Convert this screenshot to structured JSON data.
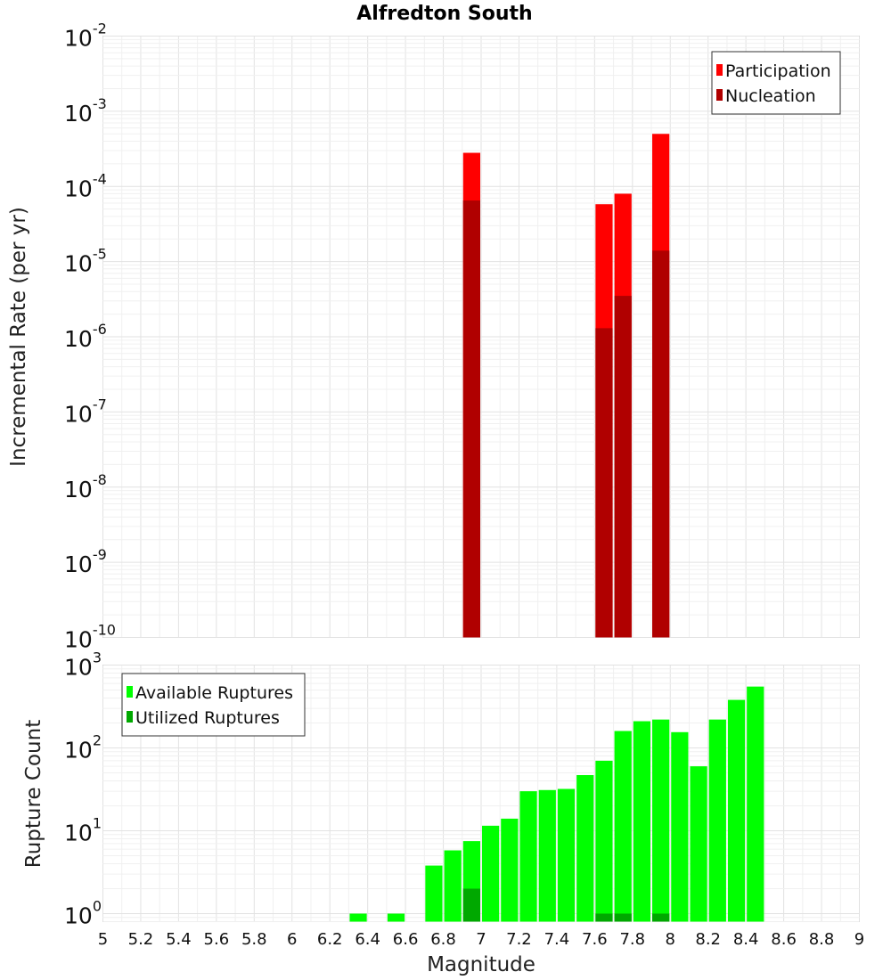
{
  "chart_data": [
    {
      "type": "bar",
      "title": "Alfredton South",
      "xlabel": "",
      "ylabel": "Incremental Rate (per yr)",
      "xlim": [
        5,
        9
      ],
      "ylim": [
        1e-10,
        0.01
      ],
      "yscale": "log",
      "y_ticks": [
        {
          "base": "10",
          "exp": "-10"
        },
        {
          "base": "10",
          "exp": "-9"
        },
        {
          "base": "10",
          "exp": "-8"
        },
        {
          "base": "10",
          "exp": "-7"
        },
        {
          "base": "10",
          "exp": "-6"
        },
        {
          "base": "10",
          "exp": "-5"
        },
        {
          "base": "10",
          "exp": "-4"
        },
        {
          "base": "10",
          "exp": "-3"
        },
        {
          "base": "10",
          "exp": "-2"
        }
      ],
      "grid": true,
      "legend_position": "top-right",
      "series": [
        {
          "name": "Participation",
          "color": "#ff0000",
          "points": [
            [
              6.95,
              0.00028
            ],
            [
              7.65,
              5.8e-05
            ],
            [
              7.75,
              8e-05
            ],
            [
              7.95,
              0.0005
            ]
          ]
        },
        {
          "name": "Nucleation",
          "color": "#b00000",
          "points": [
            [
              6.95,
              6.5e-05
            ],
            [
              7.65,
              1.3e-06
            ],
            [
              7.75,
              3.5e-06
            ],
            [
              7.95,
              1.4e-05
            ]
          ]
        }
      ]
    },
    {
      "type": "bar",
      "title": "",
      "xlabel": "Magnitude",
      "ylabel": "Rupture Count",
      "xlim": [
        5,
        9
      ],
      "ylim": [
        0.8,
        1000
      ],
      "yscale": "log",
      "y_ticks": [
        {
          "base": "10",
          "exp": "0"
        },
        {
          "base": "10",
          "exp": "1"
        },
        {
          "base": "10",
          "exp": "2"
        },
        {
          "base": "10",
          "exp": "3"
        }
      ],
      "x_ticks": [
        "5",
        "5.2",
        "5.4",
        "5.6",
        "5.8",
        "6",
        "6.2",
        "6.4",
        "6.6",
        "6.8",
        "7",
        "7.2",
        "7.4",
        "7.6",
        "7.8",
        "8",
        "8.2",
        "8.4",
        "8.6",
        "8.8",
        "9"
      ],
      "grid": true,
      "legend_position": "top-left",
      "series": [
        {
          "name": "Available Ruptures",
          "color": "#00ff00",
          "points": [
            [
              6.35,
              1
            ],
            [
              6.55,
              1
            ],
            [
              6.75,
              3.8
            ],
            [
              6.85,
              5.8
            ],
            [
              6.95,
              7.5
            ],
            [
              7.05,
              11.5
            ],
            [
              7.15,
              14
            ],
            [
              7.25,
              30
            ],
            [
              7.35,
              31
            ],
            [
              7.45,
              32
            ],
            [
              7.55,
              47
            ],
            [
              7.65,
              70
            ],
            [
              7.75,
              160
            ],
            [
              7.85,
              210
            ],
            [
              7.95,
              220
            ],
            [
              8.05,
              155
            ],
            [
              8.15,
              60
            ],
            [
              8.25,
              220
            ],
            [
              8.35,
              380
            ],
            [
              8.45,
              550
            ]
          ]
        },
        {
          "name": "Utilized Ruptures",
          "color": "#00a800",
          "points": [
            [
              6.95,
              2
            ],
            [
              7.65,
              1
            ],
            [
              7.75,
              1
            ],
            [
              7.95,
              1
            ]
          ]
        }
      ]
    }
  ]
}
